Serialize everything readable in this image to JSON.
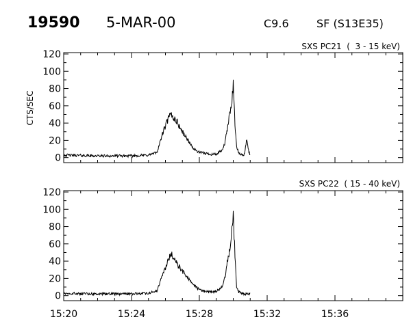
{
  "header": {
    "event_id": "19590",
    "date": "5-MAR-00",
    "goes_class": "C9.6",
    "flare_info": "SF (S13E35)"
  },
  "chart_data": [
    {
      "type": "line",
      "title": "SXS PC21  (  3 - 15 keV)",
      "ylabel": "CTS/SEC",
      "xlabel": "",
      "x_tick_labels": [
        "15:20",
        "15:24",
        "15:28",
        "15:32",
        "15:36"
      ],
      "y_ticks": [
        0,
        20,
        40,
        60,
        80,
        100,
        120
      ],
      "xlim": [
        "15:20",
        "15:40"
      ],
      "ylim": [
        0,
        120
      ],
      "grid": false,
      "series": [
        {
          "x": [
            "15:20:00",
            "15:22:00",
            "15:24:00",
            "15:25:00",
            "15:25:30",
            "15:25:50",
            "15:26:10",
            "15:26:20",
            "15:26:40",
            "15:27:00",
            "15:27:20",
            "15:27:40",
            "15:28:00",
            "15:28:20",
            "15:28:40",
            "15:29:00",
            "15:29:20",
            "15:29:30",
            "15:29:40",
            "15:29:50",
            "15:29:56",
            "15:30:00",
            "15:30:06",
            "15:30:12",
            "15:30:20",
            "15:30:30",
            "15:30:40",
            "15:30:48",
            "15:30:55",
            "15:31:00"
          ],
          "y": [
            3,
            2,
            2,
            3,
            6,
            28,
            45,
            50,
            42,
            30,
            20,
            10,
            6,
            5,
            4,
            4,
            8,
            16,
            35,
            55,
            70,
            85,
            40,
            12,
            5,
            3,
            4,
            22,
            6,
            3
          ]
        }
      ]
    },
    {
      "type": "line",
      "title": "SXS PC22  ( 15 - 40 keV)",
      "ylabel": "",
      "xlabel": "",
      "x_tick_labels": [
        "15:20",
        "15:24",
        "15:28",
        "15:32",
        "15:36"
      ],
      "y_ticks": [
        0,
        20,
        40,
        60,
        80,
        100,
        120
      ],
      "xlim": [
        "15:20",
        "15:40"
      ],
      "ylim": [
        0,
        120
      ],
      "grid": false,
      "series": [
        {
          "x": [
            "15:20:00",
            "15:22:00",
            "15:24:00",
            "15:25:00",
            "15:25:30",
            "15:25:50",
            "15:26:10",
            "15:26:20",
            "15:26:40",
            "15:27:00",
            "15:27:20",
            "15:27:40",
            "15:28:00",
            "15:28:20",
            "15:28:40",
            "15:29:00",
            "15:29:20",
            "15:29:30",
            "15:29:40",
            "15:29:50",
            "15:29:56",
            "15:30:00",
            "15:30:06",
            "15:30:12",
            "15:30:20",
            "15:30:30",
            "15:30:40",
            "15:30:50",
            "15:31:00"
          ],
          "y": [
            3,
            2,
            2,
            3,
            5,
            25,
            40,
            48,
            38,
            28,
            20,
            12,
            7,
            5,
            4,
            5,
            10,
            20,
            40,
            60,
            80,
            98,
            45,
            10,
            4,
            3,
            2,
            2,
            2
          ]
        }
      ]
    }
  ]
}
